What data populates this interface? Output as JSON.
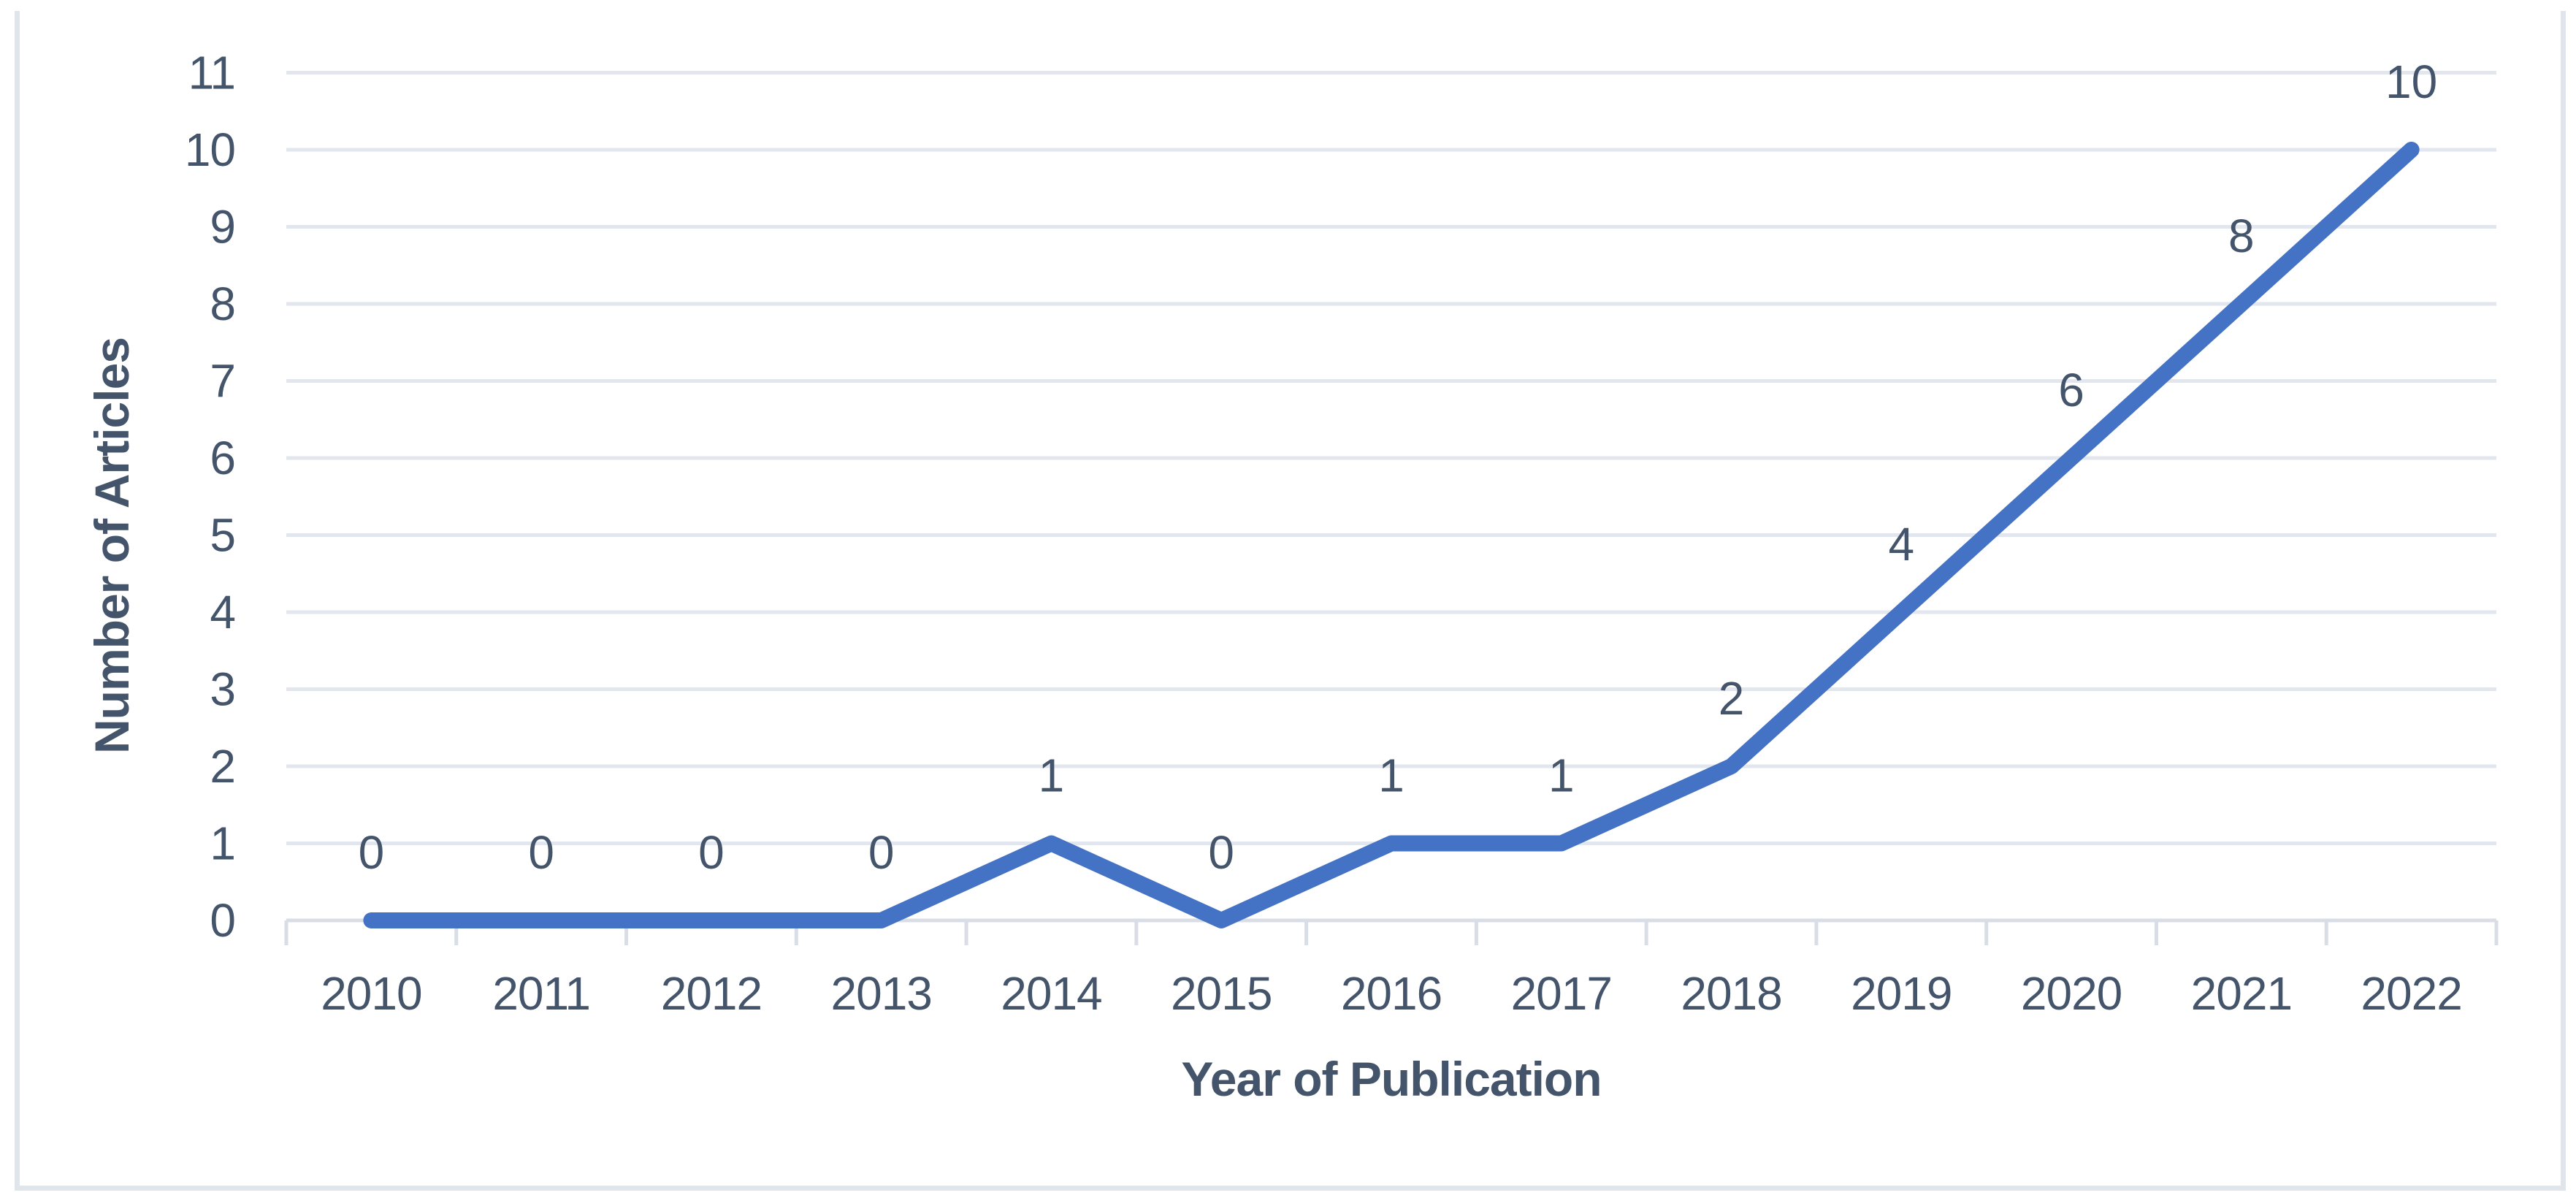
{
  "figure": {
    "background_color": "#FFFFFF",
    "frame_border_color": "#E0E4EB"
  },
  "chart_data": {
    "type": "line",
    "title": "",
    "categories": [
      "2010",
      "2011",
      "2012",
      "2013",
      "2014",
      "2015",
      "2016",
      "2017",
      "2018",
      "2019",
      "2020",
      "2021",
      "2022"
    ],
    "series": [
      {
        "name": "Number of Articles",
        "values": [
          0,
          0,
          0,
          0,
          1,
          0,
          1,
          1,
          2,
          4,
          6,
          8,
          10
        ]
      }
    ],
    "data_labels": [
      "0",
      "0",
      "0",
      "0",
      "1",
      "0",
      "1",
      "1",
      "2",
      "4",
      "6",
      "8",
      "10"
    ],
    "xlabel": "Year of Publication",
    "ylabel": "Number of Articles",
    "ylim": [
      0,
      11
    ],
    "yticks": [
      "0",
      "1",
      "2",
      "3",
      "4",
      "5",
      "6",
      "7",
      "8",
      "9",
      "10",
      "11"
    ],
    "grid": "horizontal",
    "legend": "none",
    "line_color": "#4472C4",
    "line_width": 22,
    "gridline_color": "#E2E6EE",
    "axis_line_color": "#D8DDE6",
    "text_color": "#44546A"
  }
}
